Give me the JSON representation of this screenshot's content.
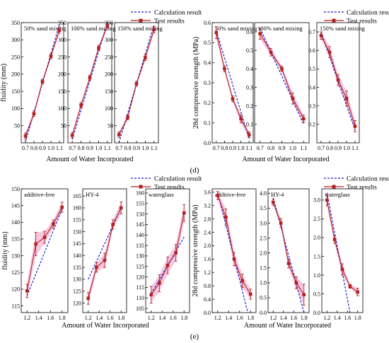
{
  "figure": {
    "labels": {
      "d": "(d)",
      "e": "(e)"
    }
  },
  "legend": {
    "calc_label": "Calculation result",
    "test_label": "Test results"
  },
  "colors": {
    "test": "#b22222",
    "calc": "#1f1fd0",
    "errfill": "#f4b6d8",
    "frame": "#000000"
  },
  "chart_data": [
    {
      "type": "line",
      "group": "fluidity-top",
      "ylabel": "fluidity (mm)",
      "xlabel": "Amount of Water Incorporated",
      "ylim": [
        0,
        350
      ],
      "yticks": [
        50,
        100,
        150,
        200,
        250,
        300,
        350
      ],
      "xlim": [
        0.65,
        1.15
      ],
      "xticks": [
        0.7,
        0.8,
        0.9,
        1.0,
        1.1
      ],
      "xtick_labels": [
        "0.7",
        "0.8",
        "0.9",
        "1.0",
        "1.1"
      ],
      "panels": [
        {
          "title": "50% sand mixing",
          "x": [
            0.7,
            0.8,
            0.9,
            1.0,
            1.1
          ],
          "test": [
            20,
            85,
            178,
            252,
            328
          ],
          "err": [
            9,
            8,
            7,
            7,
            9
          ],
          "calc": [
            [
              0.7,
              3
            ],
            [
              1.1,
              345
            ]
          ]
        },
        {
          "title": "100% sand mixing",
          "x": [
            0.7,
            0.8,
            0.9,
            1.0,
            1.1
          ],
          "test": [
            22,
            110,
            190,
            276,
            340
          ],
          "err": [
            8,
            7,
            7,
            8,
            7
          ],
          "calc": [
            [
              0.7,
              10
            ],
            [
              1.1,
              350
            ]
          ]
        },
        {
          "title": "150% sand mixing",
          "x": [
            0.7,
            0.8,
            0.9,
            1.0,
            1.1
          ],
          "test": [
            24,
            74,
            172,
            248,
            330
          ],
          "err": [
            8,
            7,
            7,
            8,
            9
          ],
          "calc": [
            [
              0.7,
              0
            ],
            [
              1.1,
              345
            ]
          ]
        }
      ]
    },
    {
      "type": "line",
      "group": "strength-top",
      "ylabel": "28d compressive strength (MPa)",
      "xlabel": "Amount of Water Incorporated",
      "xlim": [
        0.65,
        1.15
      ],
      "xticks": [
        0.7,
        0.8,
        0.9,
        1.0,
        1.1
      ],
      "xtick_labels": [
        "0.7",
        "0.8",
        "0.9",
        "1.0",
        "1.1"
      ],
      "panels": [
        {
          "title": "50% sand mixing",
          "ylim": [
            0,
            0.6
          ],
          "yticks": [
            0.0,
            0.1,
            0.2,
            0.3,
            0.4,
            0.5,
            0.6
          ],
          "ytick_labels": [
            "0.0",
            "0.1",
            "0.2",
            "0.3",
            "0.4",
            "0.5",
            "0.6"
          ],
          "x": [
            0.7,
            0.8,
            0.9,
            1.0,
            1.1
          ],
          "test": [
            0.55,
            0.37,
            0.22,
            0.12,
            0.04
          ],
          "err": [
            0.03,
            0.015,
            0.015,
            0.02,
            0.015
          ],
          "calc": [
            [
              0.7,
              0.56
            ],
            [
              1.1,
              0.02
            ]
          ]
        },
        {
          "title": "100% sand mixing",
          "ylim": [
            0,
            0.65
          ],
          "yticks": [
            0.1,
            0.2,
            0.3,
            0.4,
            0.5,
            0.6
          ],
          "ytick_labels": [
            "0.1",
            "0.2",
            "0.3",
            "0.4",
            "0.5",
            "0.6"
          ],
          "x": [
            0.7,
            0.8,
            0.9,
            1.0,
            1.1
          ],
          "test": [
            0.59,
            0.49,
            0.4,
            0.24,
            0.13
          ],
          "err": [
            0.03,
            0.02,
            0.015,
            0.03,
            0.02
          ],
          "calc": [
            [
              0.7,
              0.62
            ],
            [
              1.1,
              0.1
            ]
          ]
        },
        {
          "title": "150% sand mixing",
          "ylim": [
            0.1,
            0.75
          ],
          "yticks": [
            0.2,
            0.3,
            0.4,
            0.5,
            0.6,
            0.7
          ],
          "ytick_labels": [
            "0.2",
            "0.3",
            "0.4",
            "0.5",
            "0.6",
            "0.7"
          ],
          "x": [
            0.7,
            0.8,
            0.9,
            1.0,
            1.1
          ],
          "test": [
            0.68,
            0.59,
            0.44,
            0.34,
            0.19
          ],
          "err": [
            0.02,
            0.03,
            0.03,
            0.04,
            0.03
          ],
          "calc": [
            [
              0.7,
              0.7
            ],
            [
              1.1,
              0.17
            ]
          ]
        }
      ]
    },
    {
      "type": "line",
      "group": "fluidity-bottom",
      "ylabel": "fluidity (mm)",
      "xlabel": "Amount of Water Incorporated",
      "xlim": [
        1.1,
        1.9
      ],
      "xticks": [
        1.2,
        1.4,
        1.6,
        1.8
      ],
      "xtick_labels": [
        "1.2",
        "1.4",
        "1.6",
        "1.8"
      ],
      "panels": [
        {
          "title": "additive-free",
          "ylim": [
            113,
            150
          ],
          "yticks": [
            115,
            120,
            125,
            130,
            135,
            140,
            145,
            150
          ],
          "x": [
            1.2,
            1.35,
            1.5,
            1.65,
            1.8
          ],
          "test": [
            119.5,
            133.5,
            135.5,
            139.5,
            144.5
          ],
          "err": [
            2,
            3.5,
            1.8,
            1.2,
            1.5
          ],
          "calc": [
            [
              1.2,
              118
            ],
            [
              1.8,
              144
            ]
          ]
        },
        {
          "title": "HY-4",
          "ylim": [
            116,
            168
          ],
          "yticks": [
            120,
            125,
            130,
            135,
            140,
            145,
            150,
            155,
            160,
            165
          ],
          "x": [
            1.2,
            1.35,
            1.5,
            1.65,
            1.8
          ],
          "test": [
            122,
            135,
            138,
            153,
            160
          ],
          "err": [
            2.5,
            2,
            3,
            2,
            2.5
          ],
          "calc": [
            [
              1.2,
              130
            ],
            [
              1.8,
              160
            ]
          ]
        },
        {
          "title": "waterglass",
          "ylim": [
            103,
            162
          ],
          "yticks": [
            105,
            110,
            115,
            120,
            125,
            130,
            135,
            140,
            145,
            150,
            155,
            160
          ],
          "x": [
            1.2,
            1.35,
            1.5,
            1.65,
            1.8
          ],
          "test": [
            111.5,
            117,
            125.5,
            131.5,
            150.5
          ],
          "err": [
            4,
            4,
            4,
            4,
            4
          ],
          "calc": [
            [
              1.2,
              112
            ],
            [
              1.8,
              139
            ]
          ]
        }
      ]
    },
    {
      "type": "line",
      "group": "strength-bottom",
      "ylabel": "28d compressive strength (MPa)",
      "xlabel": "Amount of Water Incorporated",
      "xlim": [
        1.1,
        1.9
      ],
      "xticks": [
        1.2,
        1.4,
        1.6,
        1.8
      ],
      "xtick_labels": [
        "1.2",
        "1.4",
        "1.6",
        "1.8"
      ],
      "panels": [
        {
          "title": "additive-free",
          "ylim": [
            0,
            3.7
          ],
          "yticks": [
            0.0,
            0.4,
            0.8,
            1.2,
            1.6,
            2.0,
            2.4,
            2.8,
            3.2,
            3.6
          ],
          "ytick_labels": [
            "0.0",
            "0.4",
            "0.8",
            "1.2",
            "1.6",
            "2.0",
            "2.4",
            "2.8",
            "3.2",
            "3.6"
          ],
          "x": [
            1.2,
            1.35,
            1.5,
            1.65,
            1.8
          ],
          "test": [
            3.5,
            2.85,
            1.6,
            0.95,
            0.55
          ],
          "err": [
            0.12,
            0.25,
            0.2,
            0.2,
            0.15
          ],
          "calc": [
            [
              1.2,
              3.6
            ],
            [
              1.75,
              0.0
            ]
          ]
        },
        {
          "title": "HY-4",
          "ylim": [
            0,
            4.15
          ],
          "yticks": [
            0.0,
            0.5,
            1.0,
            1.5,
            2.0,
            2.5,
            3.0,
            3.5,
            4.0
          ],
          "ytick_labels": [
            "0.0",
            "0.5",
            "1.0",
            "1.5",
            "2.0",
            "2.5",
            "3.0",
            "3.5",
            "4.0"
          ],
          "x": [
            1.2,
            1.35,
            1.5,
            1.65,
            1.8
          ],
          "test": [
            3.7,
            3.0,
            1.65,
            1.0,
            0.6
          ],
          "err": [
            0.1,
            0.15,
            0.15,
            0.2,
            0.35
          ],
          "calc": [
            [
              1.2,
              3.85
            ],
            [
              1.8,
              0.0
            ]
          ]
        },
        {
          "title": "waterglass",
          "ylim": [
            0,
            3.3
          ],
          "yticks": [
            0.0,
            0.5,
            1.0,
            1.5,
            2.0,
            2.5,
            3.0
          ],
          "ytick_labels": [
            "0.0",
            "0.5",
            "1.0",
            "1.5",
            "2.0",
            "2.5",
            "3.0"
          ],
          "x": [
            1.2,
            1.35,
            1.5,
            1.65,
            1.8
          ],
          "test": [
            3.0,
            1.95,
            1.15,
            0.7,
            0.55
          ],
          "err": [
            0.15,
            0.1,
            0.15,
            0.05,
            0.1
          ],
          "calc": [
            [
              1.2,
              3.2
            ],
            [
              1.65,
              0.0
            ]
          ]
        }
      ]
    }
  ]
}
